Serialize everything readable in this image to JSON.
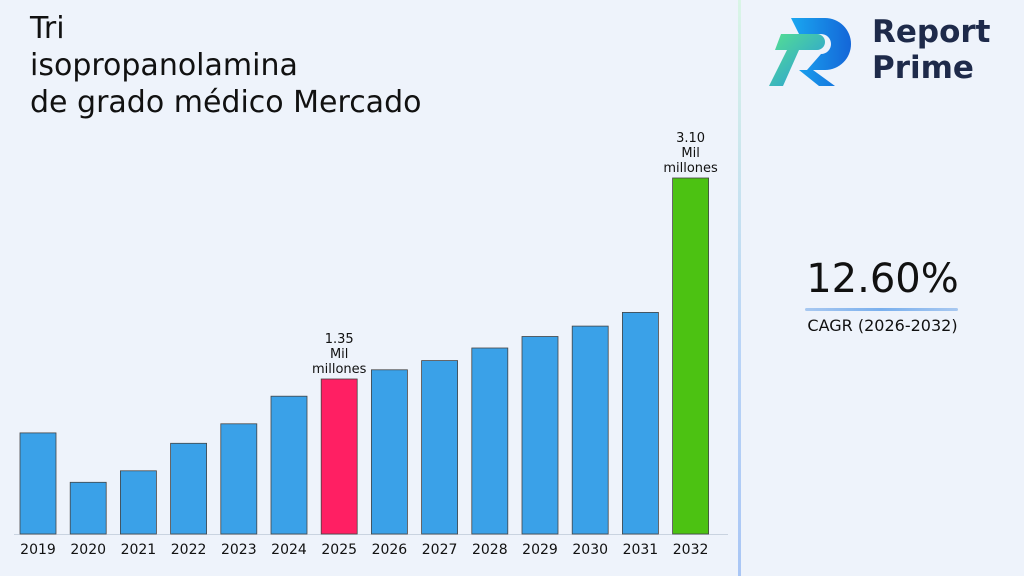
{
  "chart_data": {
    "type": "bar",
    "title": "Tri isopropanolamina de grado médico Mercado",
    "title_lines": [
      "Tri",
      "isopropanolamina",
      "de grado médico Mercado"
    ],
    "categories": [
      "2019",
      "2020",
      "2021",
      "2022",
      "2023",
      "2024",
      "2025",
      "2026",
      "2027",
      "2028",
      "2029",
      "2030",
      "2031",
      "2032"
    ],
    "values": [
      0.88,
      0.45,
      0.55,
      0.79,
      0.96,
      1.2,
      1.35,
      1.43,
      1.51,
      1.62,
      1.72,
      1.81,
      1.93,
      3.1
    ],
    "ylim": [
      0,
      3.3
    ],
    "xlabel": "",
    "ylabel": "",
    "grid": false,
    "bar_colors": {
      "default": "#3aa1e8",
      "2025": "#ff1f63",
      "2032": "#4cc212"
    },
    "data_labels": [
      {
        "category": "2025",
        "lines": [
          "1.35",
          "Mil",
          "millones"
        ]
      },
      {
        "category": "2032",
        "lines": [
          "3.10",
          "Mil",
          "millones"
        ]
      }
    ]
  },
  "brand": {
    "name_line1": "Report",
    "name_line2": "Prime",
    "logo_icon": "report-prime-logo-icon"
  },
  "cagr": {
    "value": "12.60%",
    "label": "CAGR (2026-2032)"
  }
}
